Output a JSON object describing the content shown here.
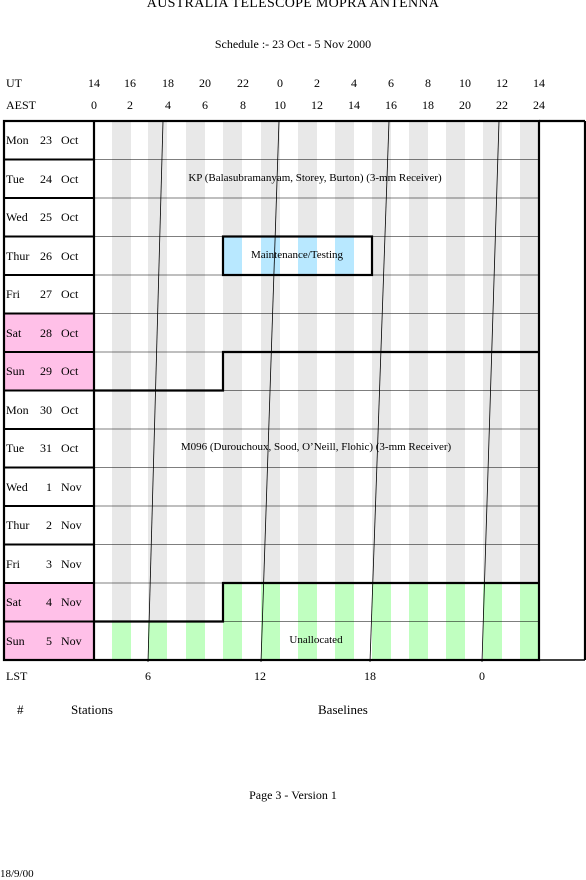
{
  "header": {
    "title": "AUSTRALIA TELESCOPE MOPRA ANTENNA",
    "subtitle": "Schedule :- 23 Oct - 5 Nov 2000"
  },
  "axes": {
    "ut_label": "UT",
    "aest_label": "AEST",
    "lst_label": "LST",
    "ut_ticks": [
      "14",
      "16",
      "18",
      "20",
      "22",
      "0",
      "2",
      "4",
      "6",
      "8",
      "10",
      "12",
      "14"
    ],
    "aest_ticks": [
      "0",
      "2",
      "4",
      "6",
      "8",
      "10",
      "12",
      "14",
      "16",
      "18",
      "20",
      "22",
      "24"
    ],
    "lst_ticks": [
      "6",
      "12",
      "18",
      "0"
    ]
  },
  "days": [
    {
      "weekday": "Mon",
      "date": "23",
      "month": "Oct",
      "weekend": false
    },
    {
      "weekday": "Tue",
      "date": "24",
      "month": "Oct",
      "weekend": false
    },
    {
      "weekday": "Wed",
      "date": "25",
      "month": "Oct",
      "weekend": false
    },
    {
      "weekday": "Thur",
      "date": "26",
      "month": "Oct",
      "weekend": false
    },
    {
      "weekday": "Fri",
      "date": "27",
      "month": "Oct",
      "weekend": false
    },
    {
      "weekday": "Sat",
      "date": "28",
      "month": "Oct",
      "weekend": true
    },
    {
      "weekday": "Sun",
      "date": "29",
      "month": "Oct",
      "weekend": true
    },
    {
      "weekday": "Mon",
      "date": "30",
      "month": "Oct",
      "weekend": false
    },
    {
      "weekday": "Tue",
      "date": "31",
      "month": "Oct",
      "weekend": false
    },
    {
      "weekday": "Wed",
      "date": "1",
      "month": "Nov",
      "weekend": false
    },
    {
      "weekday": "Thur",
      "date": "2",
      "month": "Nov",
      "weekend": false
    },
    {
      "weekday": "Fri",
      "date": "3",
      "month": "Nov",
      "weekend": false
    },
    {
      "weekday": "Sat",
      "date": "4",
      "month": "Nov",
      "weekend": true
    },
    {
      "weekday": "Sun",
      "date": "5",
      "month": "Nov",
      "weekend": true
    }
  ],
  "blocks": {
    "kp": "KP (Balasubramanyam, Storey, Burton) (3-mm Receiver)",
    "maintenance": "Maintenance/Testing",
    "m096": "M096 (Durouchoux, Sood, O’Neill, Flohic) (3-mm Receiver)",
    "unallocated": "Unallocated"
  },
  "colors": {
    "weekend": "#ffc0e8",
    "maintenance": "#b8e8ff",
    "unallocated": "#c0ffc0",
    "stripe": "#e8e8e8"
  },
  "footer": {
    "hash": "#",
    "stations": "Stations",
    "baselines": "Baselines",
    "page": "Page 3 - Version 1",
    "date": "18/9/00"
  }
}
